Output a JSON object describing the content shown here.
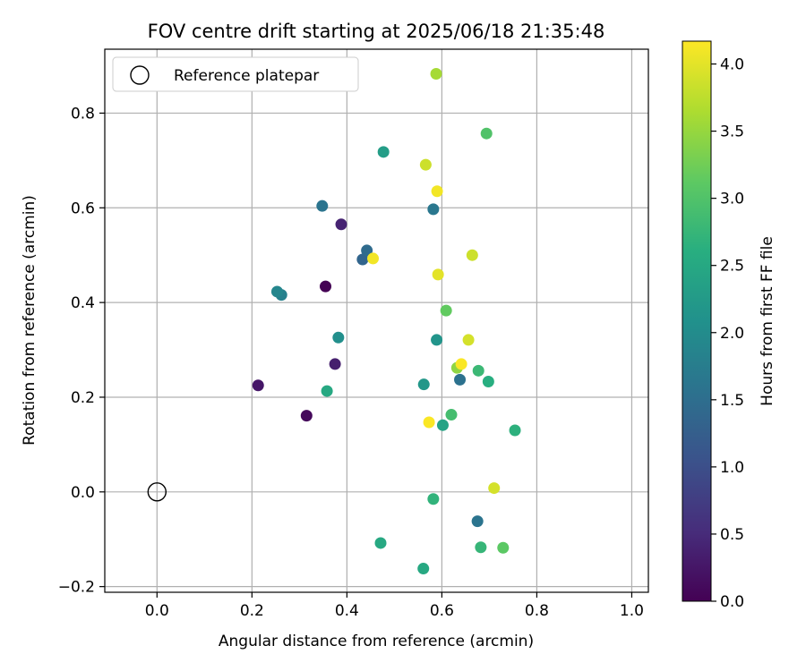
{
  "chart_data": {
    "type": "scatter",
    "title": "FOV centre drift starting at 2025/06/18 21:35:48",
    "xlabel": "Angular distance from reference (arcmin)",
    "ylabel": "Rotation from reference (arcmin)",
    "xlim": [
      -0.11,
      1.035
    ],
    "ylim": [
      -0.212,
      0.935
    ],
    "xticks": [
      0.0,
      0.2,
      0.4,
      0.6,
      0.8,
      1.0
    ],
    "xtick_labels": [
      "0.0",
      "0.2",
      "0.4",
      "0.6",
      "0.8",
      "1.0"
    ],
    "yticks": [
      -0.2,
      0.0,
      0.2,
      0.4,
      0.6,
      0.8
    ],
    "ytick_labels": [
      "−0.2",
      "0.0",
      "0.2",
      "0.4",
      "0.6",
      "0.8"
    ],
    "grid": true,
    "legend": {
      "placement": "upper-left",
      "entries": [
        {
          "label": "Reference platepar",
          "marker": "open-circle"
        }
      ]
    },
    "reference_point": {
      "x": 0.0,
      "y": 0.0
    },
    "colorbar": {
      "label": "Hours from first FF file",
      "range": [
        0.0,
        4.17
      ],
      "ticks": [
        0.0,
        0.5,
        1.0,
        1.5,
        2.0,
        2.5,
        3.0,
        3.5,
        4.0
      ],
      "tick_labels": [
        "0.0",
        "0.5",
        "1.0",
        "1.5",
        "2.0",
        "2.5",
        "3.0",
        "3.5",
        "4.0"
      ],
      "colormap": "viridis"
    },
    "points": [
      {
        "x": 0.355,
        "y": 0.434,
        "hours": 0.0
      },
      {
        "x": 0.315,
        "y": 0.161,
        "hours": 0.1
      },
      {
        "x": 0.213,
        "y": 0.225,
        "hours": 0.25
      },
      {
        "x": 0.375,
        "y": 0.27,
        "hours": 0.35
      },
      {
        "x": 0.388,
        "y": 0.565,
        "hours": 0.4
      },
      {
        "x": 0.433,
        "y": 0.491,
        "hours": 1.35
      },
      {
        "x": 0.442,
        "y": 0.51,
        "hours": 1.45
      },
      {
        "x": 0.675,
        "y": -0.062,
        "hours": 1.6
      },
      {
        "x": 0.638,
        "y": 0.237,
        "hours": 1.55
      },
      {
        "x": 0.348,
        "y": 0.604,
        "hours": 1.6
      },
      {
        "x": 0.582,
        "y": 0.597,
        "hours": 1.65
      },
      {
        "x": 0.262,
        "y": 0.416,
        "hours": 1.8
      },
      {
        "x": 0.253,
        "y": 0.423,
        "hours": 1.9
      },
      {
        "x": 0.382,
        "y": 0.326,
        "hours": 2.05
      },
      {
        "x": 0.589,
        "y": 0.321,
        "hours": 2.15
      },
      {
        "x": 0.562,
        "y": 0.227,
        "hours": 2.2
      },
      {
        "x": 0.477,
        "y": 0.718,
        "hours": 2.3
      },
      {
        "x": 0.602,
        "y": 0.141,
        "hours": 2.4
      },
      {
        "x": 0.358,
        "y": 0.213,
        "hours": 2.5
      },
      {
        "x": 0.471,
        "y": -0.108,
        "hours": 2.5
      },
      {
        "x": 0.561,
        "y": -0.162,
        "hours": 2.5
      },
      {
        "x": 0.698,
        "y": 0.233,
        "hours": 2.6
      },
      {
        "x": 0.754,
        "y": 0.13,
        "hours": 2.65
      },
      {
        "x": 0.582,
        "y": -0.015,
        "hours": 2.7
      },
      {
        "x": 0.682,
        "y": -0.117,
        "hours": 2.75
      },
      {
        "x": 0.677,
        "y": 0.256,
        "hours": 2.8
      },
      {
        "x": 0.62,
        "y": 0.163,
        "hours": 2.9
      },
      {
        "x": 0.694,
        "y": 0.757,
        "hours": 3.0
      },
      {
        "x": 0.729,
        "y": -0.118,
        "hours": 3.1
      },
      {
        "x": 0.609,
        "y": 0.383,
        "hours": 3.15
      },
      {
        "x": 0.632,
        "y": 0.262,
        "hours": 3.45
      },
      {
        "x": 0.588,
        "y": 0.883,
        "hours": 3.6
      },
      {
        "x": 0.566,
        "y": 0.691,
        "hours": 3.85
      },
      {
        "x": 0.664,
        "y": 0.5,
        "hours": 3.85
      },
      {
        "x": 0.656,
        "y": 0.321,
        "hours": 3.9
      },
      {
        "x": 0.71,
        "y": 0.008,
        "hours": 3.9
      },
      {
        "x": 0.592,
        "y": 0.459,
        "hours": 4.0
      },
      {
        "x": 0.59,
        "y": 0.635,
        "hours": 4.1
      },
      {
        "x": 0.455,
        "y": 0.493,
        "hours": 4.1
      },
      {
        "x": 0.641,
        "y": 0.27,
        "hours": 4.15
      },
      {
        "x": 0.573,
        "y": 0.147,
        "hours": 4.15
      }
    ]
  }
}
